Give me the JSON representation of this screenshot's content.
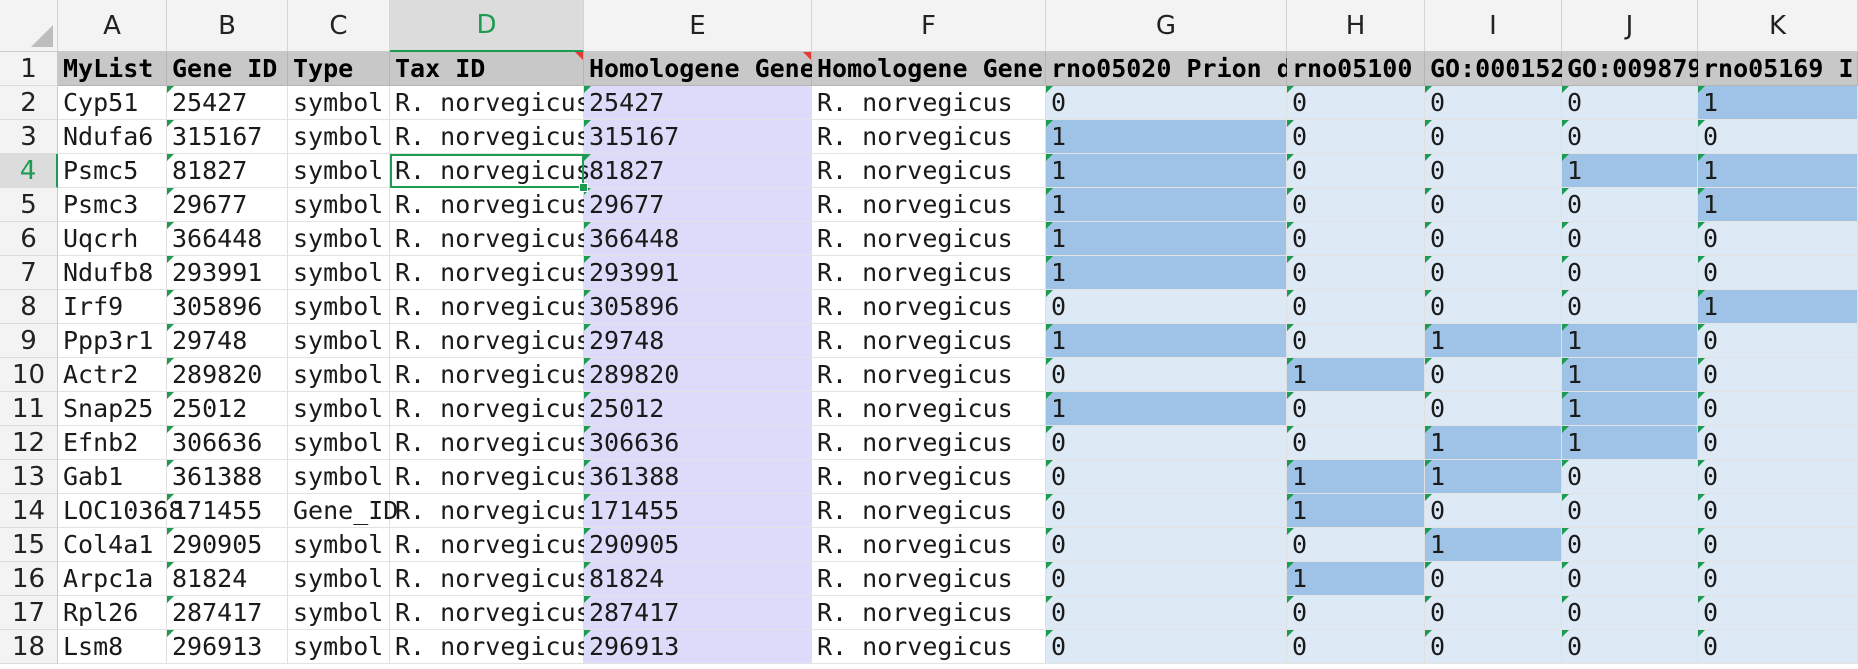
{
  "spreadsheet": {
    "columns": [
      "A",
      "B",
      "C",
      "D",
      "E",
      "F",
      "G",
      "H",
      "I",
      "J",
      "K"
    ],
    "selected_column": "D",
    "selected_row": 4,
    "header_row": [
      "MyList",
      "Gene ID",
      "Type",
      "Tax ID",
      "Homologene Gene",
      "Homologene Gene",
      "rno05020 Prion d",
      "rno05100",
      "GO:000152",
      "GO:009879",
      "rno05169 I"
    ],
    "rows": [
      {
        "n": "2",
        "cells": [
          "Cyp51",
          "25427",
          "symbol",
          "R. norvegicus",
          "25427",
          "R. norvegicus",
          "0",
          "0",
          "0",
          "0",
          "1"
        ]
      },
      {
        "n": "3",
        "cells": [
          "Ndufa6",
          "315167",
          "symbol",
          "R. norvegicus",
          "315167",
          "R. norvegicus",
          "1",
          "0",
          "0",
          "0",
          "0"
        ]
      },
      {
        "n": "4",
        "cells": [
          "Psmc5",
          "81827",
          "symbol",
          "R. norvegicus",
          "81827",
          "R. norvegicus",
          "1",
          "0",
          "0",
          "1",
          "1"
        ]
      },
      {
        "n": "5",
        "cells": [
          "Psmc3",
          "29677",
          "symbol",
          "R. norvegicus",
          "29677",
          "R. norvegicus",
          "1",
          "0",
          "0",
          "0",
          "1"
        ]
      },
      {
        "n": "6",
        "cells": [
          "Uqcrh",
          "366448",
          "symbol",
          "R. norvegicus",
          "366448",
          "R. norvegicus",
          "1",
          "0",
          "0",
          "0",
          "0"
        ]
      },
      {
        "n": "7",
        "cells": [
          "Ndufb8",
          "293991",
          "symbol",
          "R. norvegicus",
          "293991",
          "R. norvegicus",
          "1",
          "0",
          "0",
          "0",
          "0"
        ]
      },
      {
        "n": "8",
        "cells": [
          "Irf9",
          "305896",
          "symbol",
          "R. norvegicus",
          "305896",
          "R. norvegicus",
          "0",
          "0",
          "0",
          "0",
          "1"
        ]
      },
      {
        "n": "9",
        "cells": [
          "Ppp3r1",
          "29748",
          "symbol",
          "R. norvegicus",
          "29748",
          "R. norvegicus",
          "1",
          "0",
          "1",
          "1",
          "0"
        ]
      },
      {
        "n": "10",
        "cells": [
          "Actr2",
          "289820",
          "symbol",
          "R. norvegicus",
          "289820",
          "R. norvegicus",
          "0",
          "1",
          "0",
          "1",
          "0"
        ]
      },
      {
        "n": "11",
        "cells": [
          "Snap25",
          "25012",
          "symbol",
          "R. norvegicus",
          "25012",
          "R. norvegicus",
          "1",
          "0",
          "0",
          "1",
          "0"
        ]
      },
      {
        "n": "12",
        "cells": [
          "Efnb2",
          "306636",
          "symbol",
          "R. norvegicus",
          "306636",
          "R. norvegicus",
          "0",
          "0",
          "1",
          "1",
          "0"
        ]
      },
      {
        "n": "13",
        "cells": [
          "Gab1",
          "361388",
          "symbol",
          "R. norvegicus",
          "361388",
          "R. norvegicus",
          "0",
          "1",
          "1",
          "0",
          "0"
        ]
      },
      {
        "n": "14",
        "cells": [
          "LOC10368",
          "171455",
          "Gene_ID",
          "R. norvegicus",
          "171455",
          "R. norvegicus",
          "0",
          "1",
          "0",
          "0",
          "0"
        ]
      },
      {
        "n": "15",
        "cells": [
          "Col4a1",
          "290905",
          "symbol",
          "R. norvegicus",
          "290905",
          "R. norvegicus",
          "0",
          "0",
          "1",
          "0",
          "0"
        ]
      },
      {
        "n": "16",
        "cells": [
          "Arpc1a",
          "81824",
          "symbol",
          "R. norvegicus",
          "81824",
          "R. norvegicus",
          "0",
          "1",
          "0",
          "0",
          "0"
        ]
      },
      {
        "n": "17",
        "cells": [
          "Rpl26",
          "287417",
          "symbol",
          "R. norvegicus",
          "287417",
          "R. norvegicus",
          "0",
          "0",
          "0",
          "0",
          "0"
        ]
      },
      {
        "n": "18",
        "cells": [
          "Lsm8",
          "296913",
          "symbol",
          "R. norvegicus",
          "296913",
          "R. norvegicus",
          "0",
          "0",
          "0",
          "0",
          "0"
        ]
      }
    ],
    "colors": {
      "highlight": "#9fc3e6",
      "binary_column_bg": "#dde9f5",
      "homologene_column_bg": "#dcdcfa",
      "header_row_bg": "#c8c8c8",
      "selection_accent": "#1e9b53",
      "comment_marker": "#e53935"
    }
  }
}
